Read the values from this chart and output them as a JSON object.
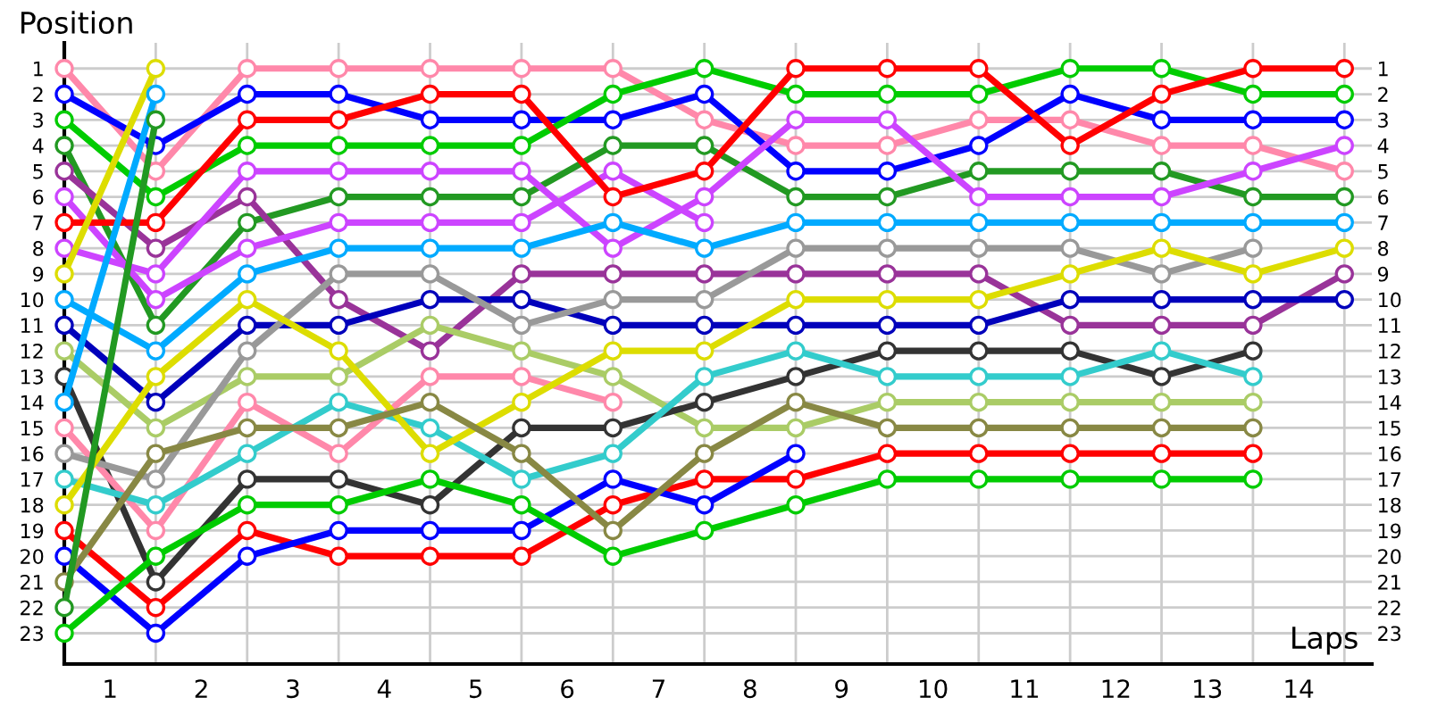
{
  "chart_data": {
    "type": "line",
    "ylabel": "Position",
    "xlabel": "Laps",
    "x": [
      0,
      1,
      2,
      3,
      4,
      5,
      6,
      7,
      8,
      9,
      10,
      11,
      12,
      13,
      14
    ],
    "series": [
      {
        "color": "#ff88aa",
        "values": [
          1,
          5,
          1,
          1,
          1,
          1,
          1,
          3,
          4,
          4,
          3,
          3,
          4,
          4,
          5
        ]
      },
      {
        "color": "#0000ff",
        "values": [
          2,
          4,
          2,
          2,
          3,
          3,
          3,
          2,
          5,
          5,
          4,
          2,
          3,
          3,
          3
        ]
      },
      {
        "color": "#00cc00",
        "values": [
          3,
          6,
          4,
          4,
          4,
          4,
          2,
          1,
          2,
          2,
          2,
          1,
          1,
          2,
          2
        ]
      },
      {
        "color": "#229922",
        "values": [
          4,
          11,
          7,
          6,
          6,
          6,
          4,
          4,
          6,
          6,
          5,
          5,
          5,
          6,
          6
        ]
      },
      {
        "color": "#993399",
        "values": [
          5,
          8,
          6,
          10,
          12,
          9,
          9,
          9,
          9,
          9,
          9,
          11,
          11,
          11,
          9
        ]
      },
      {
        "color": "#cc44ff",
        "values": [
          6,
          10,
          8,
          7,
          7,
          7,
          5,
          7,
          null,
          null,
          null,
          null,
          null,
          null,
          null
        ]
      },
      {
        "color": "#ff0000",
        "values": [
          7,
          7,
          3,
          3,
          2,
          2,
          6,
          5,
          1,
          1,
          1,
          4,
          2,
          1,
          1
        ]
      },
      {
        "color": "#cc44ff",
        "values": [
          8,
          9,
          5,
          5,
          5,
          5,
          8,
          6,
          3,
          3,
          6,
          6,
          6,
          5,
          4
        ]
      },
      {
        "color": "#dddd00",
        "values": [
          9,
          1,
          null,
          null,
          null,
          null,
          null,
          null,
          null,
          null,
          null,
          null,
          null,
          null,
          null
        ]
      },
      {
        "color": "#00aaff",
        "values": [
          10,
          12,
          9,
          8,
          8,
          8,
          7,
          8,
          7,
          7,
          7,
          7,
          7,
          7,
          7
        ]
      },
      {
        "color": "#0000bb",
        "values": [
          11,
          14,
          11,
          11,
          10,
          10,
          11,
          11,
          11,
          11,
          11,
          10,
          10,
          10,
          10
        ]
      },
      {
        "color": "#aacc66",
        "values": [
          12,
          15,
          13,
          13,
          11,
          12,
          13,
          15,
          15,
          14,
          14,
          14,
          14,
          14,
          null
        ]
      },
      {
        "color": "#333333",
        "values": [
          13,
          21,
          17,
          17,
          18,
          15,
          15,
          14,
          13,
          12,
          12,
          12,
          13,
          12,
          null
        ]
      },
      {
        "color": "#00aaff",
        "values": [
          14,
          2,
          null,
          null,
          null,
          null,
          null,
          null,
          null,
          null,
          null,
          null,
          null,
          null,
          null
        ]
      },
      {
        "color": "#ff88aa",
        "values": [
          15,
          19,
          14,
          16,
          13,
          13,
          14,
          null,
          null,
          null,
          null,
          null,
          null,
          null,
          null
        ]
      },
      {
        "color": "#999999",
        "values": [
          16,
          17,
          12,
          9,
          9,
          11,
          10,
          10,
          8,
          8,
          8,
          8,
          9,
          8,
          null
        ]
      },
      {
        "color": "#33cccc",
        "values": [
          17,
          18,
          16,
          14,
          15,
          17,
          16,
          13,
          12,
          13,
          13,
          13,
          12,
          13,
          null
        ]
      },
      {
        "color": "#dddd00",
        "values": [
          18,
          13,
          10,
          12,
          16,
          14,
          12,
          12,
          10,
          10,
          10,
          9,
          8,
          9,
          8
        ]
      },
      {
        "color": "#ff0000",
        "values": [
          19,
          22,
          19,
          20,
          20,
          20,
          18,
          17,
          17,
          16,
          16,
          16,
          16,
          16,
          null
        ]
      },
      {
        "color": "#0000ff",
        "values": [
          20,
          23,
          20,
          19,
          19,
          19,
          17,
          18,
          16,
          null,
          null,
          null,
          null,
          null,
          null
        ]
      },
      {
        "color": "#888844",
        "values": [
          21,
          16,
          15,
          15,
          14,
          16,
          19,
          16,
          14,
          15,
          15,
          15,
          15,
          15,
          null
        ]
      },
      {
        "color": "#229922",
        "values": [
          22,
          3,
          null,
          null,
          null,
          null,
          null,
          null,
          null,
          null,
          null,
          null,
          null,
          null,
          null
        ]
      },
      {
        "color": "#00cc00",
        "values": [
          23,
          20,
          18,
          18,
          17,
          18,
          20,
          19,
          18,
          17,
          17,
          17,
          17,
          17,
          null
        ]
      }
    ],
    "xlim": [
      0,
      14.3
    ],
    "xticks": [
      {
        "value": 0.5,
        "label": "1"
      },
      {
        "value": 1.5,
        "label": "2"
      },
      {
        "value": 2.5,
        "label": "3"
      },
      {
        "value": 3.5,
        "label": "4"
      },
      {
        "value": 4.5,
        "label": "5"
      },
      {
        "value": 5.5,
        "label": "6"
      },
      {
        "value": 6.5,
        "label": "7"
      },
      {
        "value": 7.5,
        "label": "8"
      },
      {
        "value": 8.5,
        "label": "9"
      },
      {
        "value": 9.5,
        "label": "10"
      },
      {
        "value": 10.5,
        "label": "11"
      },
      {
        "value": 11.5,
        "label": "12"
      },
      {
        "value": 12.5,
        "label": "13"
      },
      {
        "value": 13.5,
        "label": "14"
      },
      {
        "value": 1,
        "label": null
      },
      {
        "value": 2,
        "label": null
      },
      {
        "value": 3,
        "label": null
      },
      {
        "value": 4,
        "label": null
      },
      {
        "value": 5,
        "label": null
      },
      {
        "value": 6,
        "label": null
      },
      {
        "value": 7,
        "label": null
      },
      {
        "value": 8,
        "label": null
      },
      {
        "value": 9,
        "label": null
      },
      {
        "value": 10,
        "label": null
      },
      {
        "value": 11,
        "label": null
      },
      {
        "value": 12,
        "label": null
      },
      {
        "value": 13,
        "label": null
      },
      {
        "value": 14,
        "label": null
      }
    ],
    "ylim": [
      24.2,
      0
    ],
    "yticks": [
      1,
      2,
      3,
      4,
      5,
      6,
      7,
      8,
      9,
      10,
      11,
      12,
      13,
      14,
      15,
      16,
      17,
      18,
      19,
      20,
      21,
      22,
      23
    ],
    "y2lim": [
      24.2,
      0
    ],
    "y2ticks": [
      1,
      2,
      3,
      4,
      5,
      6,
      7,
      8,
      9,
      10,
      11,
      12,
      13,
      14,
      15,
      16,
      17,
      18,
      19,
      20,
      21,
      22,
      23
    ],
    "grid": true,
    "legend": false,
    "marker": "circle",
    "line_style": "solid"
  }
}
